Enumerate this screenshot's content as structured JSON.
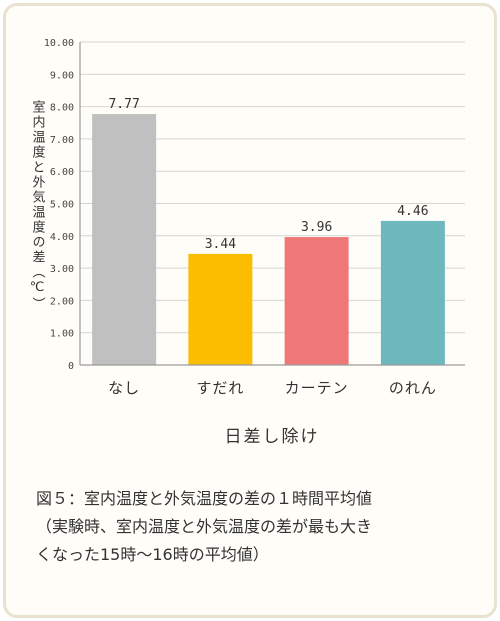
{
  "chart_data": {
    "type": "bar",
    "categories": [
      "なし",
      "すだれ",
      "カーテン",
      "のれん"
    ],
    "values": [
      7.77,
      3.44,
      3.96,
      4.46
    ],
    "value_labels": [
      "7.77",
      "3.44",
      "3.96",
      "4.46"
    ],
    "colors": [
      "#c0c0c0",
      "#fbbd00",
      "#ef7777",
      "#6cb8bd"
    ],
    "ylabel": "室内温度と外気温度の差（℃）",
    "xlabel": "日差し除け",
    "ylim": [
      0,
      10
    ],
    "yticks": [
      "0",
      "1.00",
      "2.00",
      "3.00",
      "4.00",
      "5.00",
      "6.00",
      "7.00",
      "8.00",
      "9.00",
      "10.00"
    ],
    "grid": true
  },
  "caption": {
    "line1": "図５：室内温度と外気温度の差の１時間平均値",
    "line2": "（実験時、室内温度と外気温度の差が最も大き",
    "line3": "くなった15時〜16時の平均値）"
  }
}
